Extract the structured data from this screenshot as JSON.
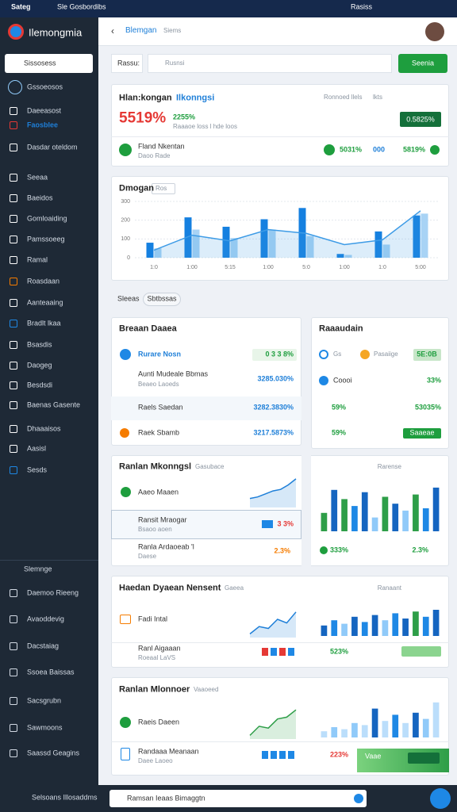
{
  "topbar": {
    "brand": "Sateg",
    "subtitle": "Sle Gosbordibs",
    "user": "Rasiss"
  },
  "sidebar": {
    "app": "Ilemongmia",
    "search": "Sissosess",
    "items": [
      "Gssoeosos",
      "Daeeasost",
      "Faosblee",
      "Dasdar oteldom",
      "Seeaa",
      "Baeidos",
      "Gomloaiding",
      "Pamssoeeg",
      "Ramal",
      "Roasdaan",
      "Aanteaaing",
      "Bradlt lkaa",
      "Bsasdis",
      "Daogeg",
      "Besdsdi",
      "Baenas Gasente",
      "Dhaaaisos",
      "Aasisl",
      "Sesds"
    ],
    "section": "Slemnge",
    "section_items": [
      "Daemoo Rieeng",
      "Avaoddevig",
      "Dacstaiag",
      "Ssoea Baissas",
      "Sacsgrubn",
      "Sawmoons",
      "Saassd Geagins"
    ],
    "footer": "Selsoans Illosaddms"
  },
  "header": {
    "back_tab": "Blemgan",
    "tab": "Siems"
  },
  "toolbar": {
    "label": "Rassu:",
    "search": "Rusnsi",
    "button": "Seenia"
  },
  "summary": {
    "title": "Hlan:kongan",
    "title_accent": "Ilkonngsi",
    "filter": "Ronnoed llels",
    "filter2": "lkts",
    "big_value": "5519%",
    "change": "2255%",
    "note": "Raaaoe loss l hde loos",
    "badge": "0.5825%",
    "item": "Fland Nkentan",
    "item_sub": "Daoo Rade",
    "stats": [
      "5031%",
      "000",
      "5819%"
    ]
  },
  "trend": {
    "title": "Dmogan",
    "filter": "Ros"
  },
  "section": {
    "label": "Sleeas",
    "pill": "Sbtbssas"
  },
  "accounts": {
    "title": "Breaan Daaea",
    "rows": [
      {
        "label": "Rurare Nosn",
        "value": "0 3 3  8%"
      },
      {
        "label": "Aunti Mudeale Bbmas",
        "sub": "Beaeo Laoeds",
        "value": "3285.030%"
      },
      {
        "label": "Raels Saedan",
        "value": "3282.3830%"
      },
      {
        "label": "Raek Sbamb",
        "value": "3217.5873%"
      }
    ]
  },
  "performance": {
    "title": "Raaaudain",
    "rows": [
      {
        "label": "Gs",
        "label2": "Pasaiige",
        "value": "5E:0B"
      },
      {
        "label": "Coooi",
        "value": "33%"
      },
      {
        "label": "59%",
        "value": "53035%"
      },
      {
        "label": "59%",
        "value": "Saaeae"
      }
    ]
  },
  "panels": [
    {
      "title": "Ranlan Mkonngsl",
      "tag": "Gasubace",
      "filter": "Rarense",
      "row": "Aaeo Maaen",
      "item": "Ransit Mraogar",
      "item_sub": "Bsaoo aoen",
      "item_value": "3 3%",
      "item2": "Ranla Ardaoeab 'l",
      "item2_sub": "Daese",
      "item2_value": "2.3%",
      "stat": "333%",
      "stat2": "2.3%"
    },
    {
      "title": "Haedan Dyaean Nensent",
      "tag": "Gaeea",
      "filter": "Ranaant",
      "row": "Fadi Intal",
      "item": "Ranl Aigaaan",
      "item_sub": "Roeaal LaVS",
      "stat": "523%"
    },
    {
      "title": "Ranlan Mlonnoer",
      "tag": "Vaaoeed",
      "row": "Raeis Daeen",
      "item": "Randaaa Meanaan",
      "item_sub": "Daee Laoeo",
      "stat": "223%",
      "extra": "Vaae"
    }
  ],
  "bottombar": {
    "search": "Ramsan Ieaas Bimaggtn"
  },
  "chart_data": [
    {
      "type": "bar",
      "ylim": [
        0,
        300
      ],
      "yticks": [
        0,
        100,
        200,
        300
      ],
      "grid": true,
      "categories": [
        "1:0",
        "1:00",
        "5:15",
        "1:00",
        "5:0",
        "1:00",
        "1:0",
        "5:00"
      ],
      "series": [
        {
          "color": "#1580e0",
          "values": [
            80,
            215,
            165,
            205,
            265,
            20,
            140,
            225
          ]
        },
        {
          "color": "#a8d3f5",
          "values": [
            50,
            150,
            105,
            150,
            115,
            15,
            70,
            235
          ]
        },
        {
          "type": "area",
          "color": "#3d9be6",
          "values": [
            40,
            120,
            90,
            150,
            130,
            70,
            95,
            250
          ]
        }
      ]
    },
    {
      "type": "area",
      "ylim": [
        0,
        100
      ],
      "color": "#1e7fd8",
      "values": [
        30,
        35,
        45,
        55,
        60,
        75,
        95
      ]
    },
    {
      "type": "bar",
      "ylim": [
        0,
        100
      ],
      "colors": [
        "#2e9e48",
        "#1565c0",
        "#2e9e48",
        "#1e88e5",
        "#1565c0",
        "#90caf9",
        "#2e9e48",
        "#1565c0",
        "#90caf9",
        "#2e9e48",
        "#1e88e5",
        "#1565c0"
      ],
      "values": [
        40,
        90,
        70,
        55,
        85,
        30,
        75,
        60,
        45,
        80,
        50,
        95
      ]
    },
    {
      "type": "area",
      "ylim": [
        0,
        100
      ],
      "color": "#1e7fd8",
      "values": [
        10,
        30,
        25,
        50,
        40,
        70
      ]
    },
    {
      "type": "bar",
      "ylim": [
        0,
        100
      ],
      "colors": [
        "#1565c0",
        "#1e88e5",
        "#90caf9",
        "#1565c0",
        "#1e88e5",
        "#1565c0",
        "#90caf9",
        "#1e88e5",
        "#1565c0",
        "#2e9e48",
        "#1e88e5",
        "#1565c0"
      ],
      "values": [
        30,
        45,
        35,
        55,
        40,
        60,
        45,
        65,
        50,
        70,
        55,
        75
      ]
    },
    {
      "type": "area",
      "ylim": [
        0,
        100
      ],
      "color": "#2e9e48",
      "values": [
        10,
        35,
        30,
        55,
        60,
        80
      ]
    },
    {
      "type": "bar",
      "ylim": [
        0,
        100
      ],
      "colors": [
        "#bbdefb",
        "#90caf9",
        "#bbdefb",
        "#90caf9",
        "#bbdefb",
        "#1565c0",
        "#bbdefb",
        "#1e88e5",
        "#bbdefb",
        "#1565c0",
        "#90caf9",
        "#bbdefb"
      ],
      "values": [
        15,
        25,
        20,
        35,
        30,
        70,
        40,
        55,
        35,
        60,
        45,
        85
      ]
    }
  ]
}
